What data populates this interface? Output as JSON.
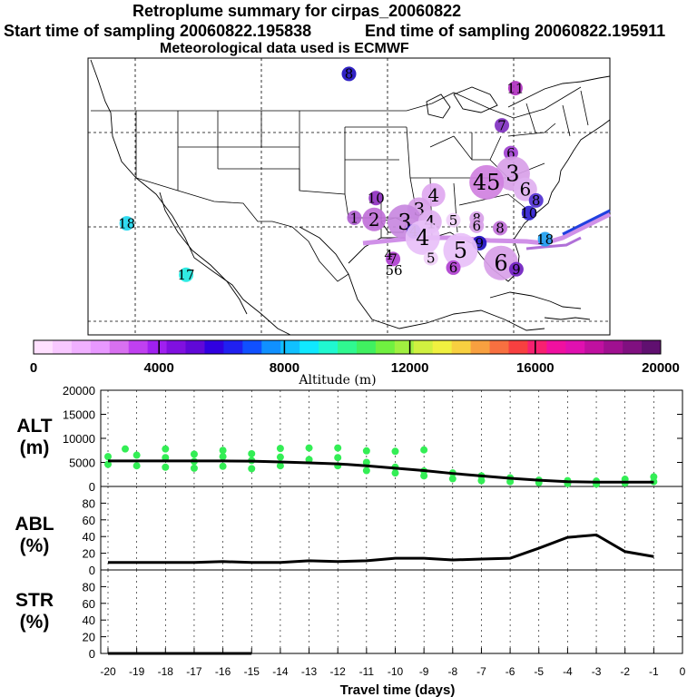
{
  "header": {
    "title": "Retroplume summary for cirpas_20060822",
    "start_time": "Start time of sampling 20060822.195838",
    "end_time": "End time of sampling 20060822.195911",
    "met_data": "Meteorological data used is ECMWF"
  },
  "colors": {
    "line": "#000000",
    "alt_dots": "#33ee55"
  },
  "map": {
    "markers": [
      {
        "label": "8",
        "lon": -92.0,
        "lat": 48.0,
        "color": "#2010c0",
        "size": "small"
      },
      {
        "label": "11",
        "lon": -73.5,
        "lat": 46.2,
        "color": "#b030c0",
        "size": "small"
      },
      {
        "label": "7",
        "lon": -75.0,
        "lat": 41.5,
        "color": "#8030c0",
        "size": "small"
      },
      {
        "label": "6",
        "lon": -74.0,
        "lat": 38.0,
        "color": "#a040d0",
        "size": "small"
      },
      {
        "label": "3",
        "lon": -73.8,
        "lat": 35.4,
        "color": "#d8a0e8",
        "size": "large"
      },
      {
        "label": "45",
        "lon": -76.7,
        "lat": 34.3,
        "color": "#d080e0",
        "size": "large"
      },
      {
        "label": "6",
        "lon": -72.4,
        "lat": 33.4,
        "color": "#e0b0f0",
        "size": "medium"
      },
      {
        "label": "4",
        "lon": -82.6,
        "lat": 32.7,
        "color": "#e0a8f0",
        "size": "medium"
      },
      {
        "label": "3",
        "lon": -84.2,
        "lat": 30.9,
        "color": "#d8a0e8",
        "size": "medium"
      },
      {
        "label": "10",
        "lon": -89.0,
        "lat": 32.3,
        "color": "#9030c0",
        "size": "small"
      },
      {
        "label": "1",
        "lon": -91.4,
        "lat": 29.8,
        "color": "#b060d0",
        "size": "small"
      },
      {
        "label": "2",
        "lon": -89.2,
        "lat": 29.6,
        "color": "#c070d8",
        "size": "medium"
      },
      {
        "label": "3",
        "lon": -85.8,
        "lat": 29.3,
        "color": "#c888e0",
        "size": "large"
      },
      {
        "label": "4",
        "lon": -84.8,
        "lat": 28.1,
        "color": "#2010c0",
        "size": "small"
      },
      {
        "label": "4",
        "lon": -83.0,
        "lat": 29.3,
        "color": "#e0b0f0",
        "size": "medium"
      },
      {
        "label": "5",
        "lon": -80.4,
        "lat": 29.5,
        "color": "#f0d0f8",
        "size": "small"
      },
      {
        "label": "4",
        "lon": -83.8,
        "lat": 27.3,
        "color": "#e8c0f8",
        "size": "large"
      },
      {
        "label": "8",
        "lon": -77.8,
        "lat": 29.7,
        "color": "#d8a0e8",
        "size": "small"
      },
      {
        "label": "6",
        "lon": -77.8,
        "lat": 28.8,
        "color": "#d8a0e8",
        "size": "small"
      },
      {
        "label": "8",
        "lon": -75.2,
        "lat": 28.5,
        "color": "#c070d8",
        "size": "small"
      },
      {
        "label": "10",
        "lon": -72.0,
        "lat": 30.4,
        "color": "#3020d0",
        "size": "small"
      },
      {
        "label": "8",
        "lon": -71.2,
        "lat": 32.0,
        "color": "#5030d0",
        "size": "small"
      },
      {
        "label": "18",
        "lon": -70.2,
        "lat": 27.1,
        "color": "#20a0f0",
        "size": "small"
      },
      {
        "label": "9",
        "lon": -77.5,
        "lat": 26.6,
        "color": "#2010c0",
        "size": "small"
      },
      {
        "label": "5",
        "lon": -79.6,
        "lat": 25.7,
        "color": "#e8c0f8",
        "size": "large"
      },
      {
        "label": "6",
        "lon": -75.1,
        "lat": 24.1,
        "color": "#d8a0e8",
        "size": "large"
      },
      {
        "label": "5",
        "lon": -82.9,
        "lat": 24.7,
        "color": "#f0d0f8",
        "size": "small"
      },
      {
        "label": "7",
        "lon": -87.1,
        "lat": 24.6,
        "color": "#b040d0",
        "size": "small"
      },
      {
        "label": "4",
        "lon": -87.6,
        "lat": 25.1,
        "color": "#ffffff",
        "size": "tiny"
      },
      {
        "label": "9",
        "lon": -73.4,
        "lat": 23.3,
        "color": "#7020c0",
        "size": "small"
      },
      {
        "label": "6",
        "lon": -80.4,
        "lat": 23.5,
        "color": "#b040d0",
        "size": "small"
      },
      {
        "label": "56",
        "lon": -87.0,
        "lat": 23.2,
        "color": "#ffffff",
        "size": "tiny"
      },
      {
        "label": "18",
        "lon": -116.7,
        "lat": 29.1,
        "color": "#20d8f0",
        "size": "small"
      },
      {
        "label": "17",
        "lon": -110.1,
        "lat": 22.6,
        "color": "#20e8e0",
        "size": "small"
      }
    ]
  },
  "colorbar": {
    "label": "Altitude (m)",
    "min": 0,
    "max": 20000,
    "tick_labels": [
      "0",
      "4000",
      "8000",
      "12000",
      "16000",
      "20000"
    ],
    "colors": [
      "#ffe0ff",
      "#f8c8ff",
      "#f0b0ff",
      "#e898ff",
      "#d870f0",
      "#c040f0",
      "#a020f0",
      "#8010e0",
      "#6008d8",
      "#3000e0",
      "#2020f0",
      "#1050ff",
      "#1090ff",
      "#10c0ff",
      "#10e8ff",
      "#20f8d0",
      "#30f890",
      "#40f060",
      "#70f040",
      "#a0f040",
      "#d0f040",
      "#f0f040",
      "#f8d040",
      "#f8a040",
      "#f87040",
      "#f84040",
      "#f82070",
      "#f010a0",
      "#e010b0",
      "#c010a0",
      "#a01090",
      "#801080",
      "#601070"
    ]
  },
  "chart_data": [
    {
      "type": "line",
      "name": "ALT",
      "ylabel": "ALT\n(m)",
      "ylabel_lines": [
        "ALT",
        "(m)"
      ],
      "ylim": [
        0,
        20000
      ],
      "yticks": [
        0,
        5000,
        10000,
        15000,
        20000
      ],
      "ytick_labels": [
        "0",
        "5000",
        "10000",
        "15000",
        "20000"
      ],
      "x": [
        -20,
        -19,
        -18,
        -17,
        -16,
        -15,
        -14,
        -13,
        -12,
        -11,
        -10,
        -9,
        -8,
        -7,
        -6,
        -5,
        -4,
        -3,
        -2,
        -1
      ],
      "series": [
        {
          "name": "mean altitude",
          "values": [
            5300,
            5300,
            5300,
            5300,
            5300,
            5250,
            5100,
            4900,
            4700,
            4300,
            3800,
            3300,
            2700,
            2200,
            1700,
            1300,
            1000,
            900,
            900,
            900
          ]
        }
      ],
      "scatter": [
        {
          "x": -20,
          "y": 6200
        },
        {
          "x": -20,
          "y": 4600
        },
        {
          "x": -19.4,
          "y": 7800
        },
        {
          "x": -19,
          "y": 6500
        },
        {
          "x": -19,
          "y": 4300
        },
        {
          "x": -18,
          "y": 7800
        },
        {
          "x": -18,
          "y": 6000
        },
        {
          "x": -18,
          "y": 4000
        },
        {
          "x": -17,
          "y": 6700
        },
        {
          "x": -17,
          "y": 5200
        },
        {
          "x": -17,
          "y": 3800
        },
        {
          "x": -16,
          "y": 7500
        },
        {
          "x": -16,
          "y": 6200
        },
        {
          "x": -16,
          "y": 4200
        },
        {
          "x": -15,
          "y": 6800
        },
        {
          "x": -15,
          "y": 5400
        },
        {
          "x": -15,
          "y": 3700
        },
        {
          "x": -14,
          "y": 7900
        },
        {
          "x": -14,
          "y": 6100
        },
        {
          "x": -14,
          "y": 4300
        },
        {
          "x": -13,
          "y": 8000
        },
        {
          "x": -13,
          "y": 5600
        },
        {
          "x": -12,
          "y": 8000
        },
        {
          "x": -12,
          "y": 6000
        },
        {
          "x": -12,
          "y": 4300
        },
        {
          "x": -11,
          "y": 7400
        },
        {
          "x": -11,
          "y": 5000
        },
        {
          "x": -11,
          "y": 3300
        },
        {
          "x": -10,
          "y": 7300
        },
        {
          "x": -10,
          "y": 4000
        },
        {
          "x": -10,
          "y": 2800
        },
        {
          "x": -9,
          "y": 7600
        },
        {
          "x": -9,
          "y": 3200
        },
        {
          "x": -9,
          "y": 2200
        },
        {
          "x": -8,
          "y": 2800
        },
        {
          "x": -8,
          "y": 1600
        },
        {
          "x": -7,
          "y": 2200
        },
        {
          "x": -7,
          "y": 1200
        },
        {
          "x": -6,
          "y": 1800
        },
        {
          "x": -6,
          "y": 1000
        },
        {
          "x": -5,
          "y": 1300
        },
        {
          "x": -5,
          "y": 800
        },
        {
          "x": -4,
          "y": 1200
        },
        {
          "x": -4,
          "y": 600
        },
        {
          "x": -3,
          "y": 1100
        },
        {
          "x": -3,
          "y": 500
        },
        {
          "x": -2,
          "y": 1500
        },
        {
          "x": -2,
          "y": 700
        },
        {
          "x": -1,
          "y": 2000
        },
        {
          "x": -1,
          "y": 1000
        }
      ]
    },
    {
      "type": "line",
      "name": "ABL",
      "ylabel": "ABL\n(%)",
      "ylabel_lines": [
        "ABL",
        "(%)"
      ],
      "ylim": [
        0,
        100
      ],
      "yticks": [
        0,
        20,
        40,
        60,
        80
      ],
      "ytick_labels": [
        "0",
        "20",
        "40",
        "60",
        "80"
      ],
      "x": [
        -20,
        -19,
        -18,
        -17,
        -16,
        -15,
        -14,
        -13,
        -12,
        -11,
        -10,
        -9,
        -8,
        -7,
        -6,
        -5,
        -4,
        -3,
        -2,
        -1
      ],
      "series": [
        {
          "name": "ABL fraction",
          "values": [
            9,
            9,
            9,
            9,
            10,
            9,
            9,
            11,
            10,
            11,
            14,
            14,
            12,
            13,
            14,
            26,
            39,
            42,
            22,
            16
          ]
        }
      ]
    },
    {
      "type": "line",
      "name": "STR",
      "ylabel": "STR\n(%)",
      "ylabel_lines": [
        "STR",
        "(%)"
      ],
      "ylim": [
        0,
        100
      ],
      "yticks": [
        0,
        20,
        40,
        60,
        80
      ],
      "ytick_labels": [
        "0",
        "20",
        "40",
        "60",
        "80"
      ],
      "x": [
        -20,
        -19,
        -18,
        -17,
        -16,
        -15
      ],
      "series": [
        {
          "name": "stratospheric fraction",
          "values": [
            0,
            0,
            0,
            0,
            0,
            0
          ]
        }
      ]
    }
  ],
  "xaxis": {
    "label": "Travel time (days)",
    "ticks": [
      -20,
      -19,
      -18,
      -17,
      -16,
      -15,
      -14,
      -13,
      -12,
      -11,
      -10,
      -9,
      -8,
      -7,
      -6,
      -5,
      -4,
      -3,
      -2,
      -1,
      0
    ],
    "tick_labels": [
      "-20",
      "-19",
      "-18",
      "-17",
      "-16",
      "-15",
      "-14",
      "-13",
      "-12",
      "-11",
      "-10",
      "-9",
      "-8",
      "-7",
      "-6",
      "-5",
      "-4",
      "-3",
      "-2",
      "-1",
      "0"
    ]
  }
}
